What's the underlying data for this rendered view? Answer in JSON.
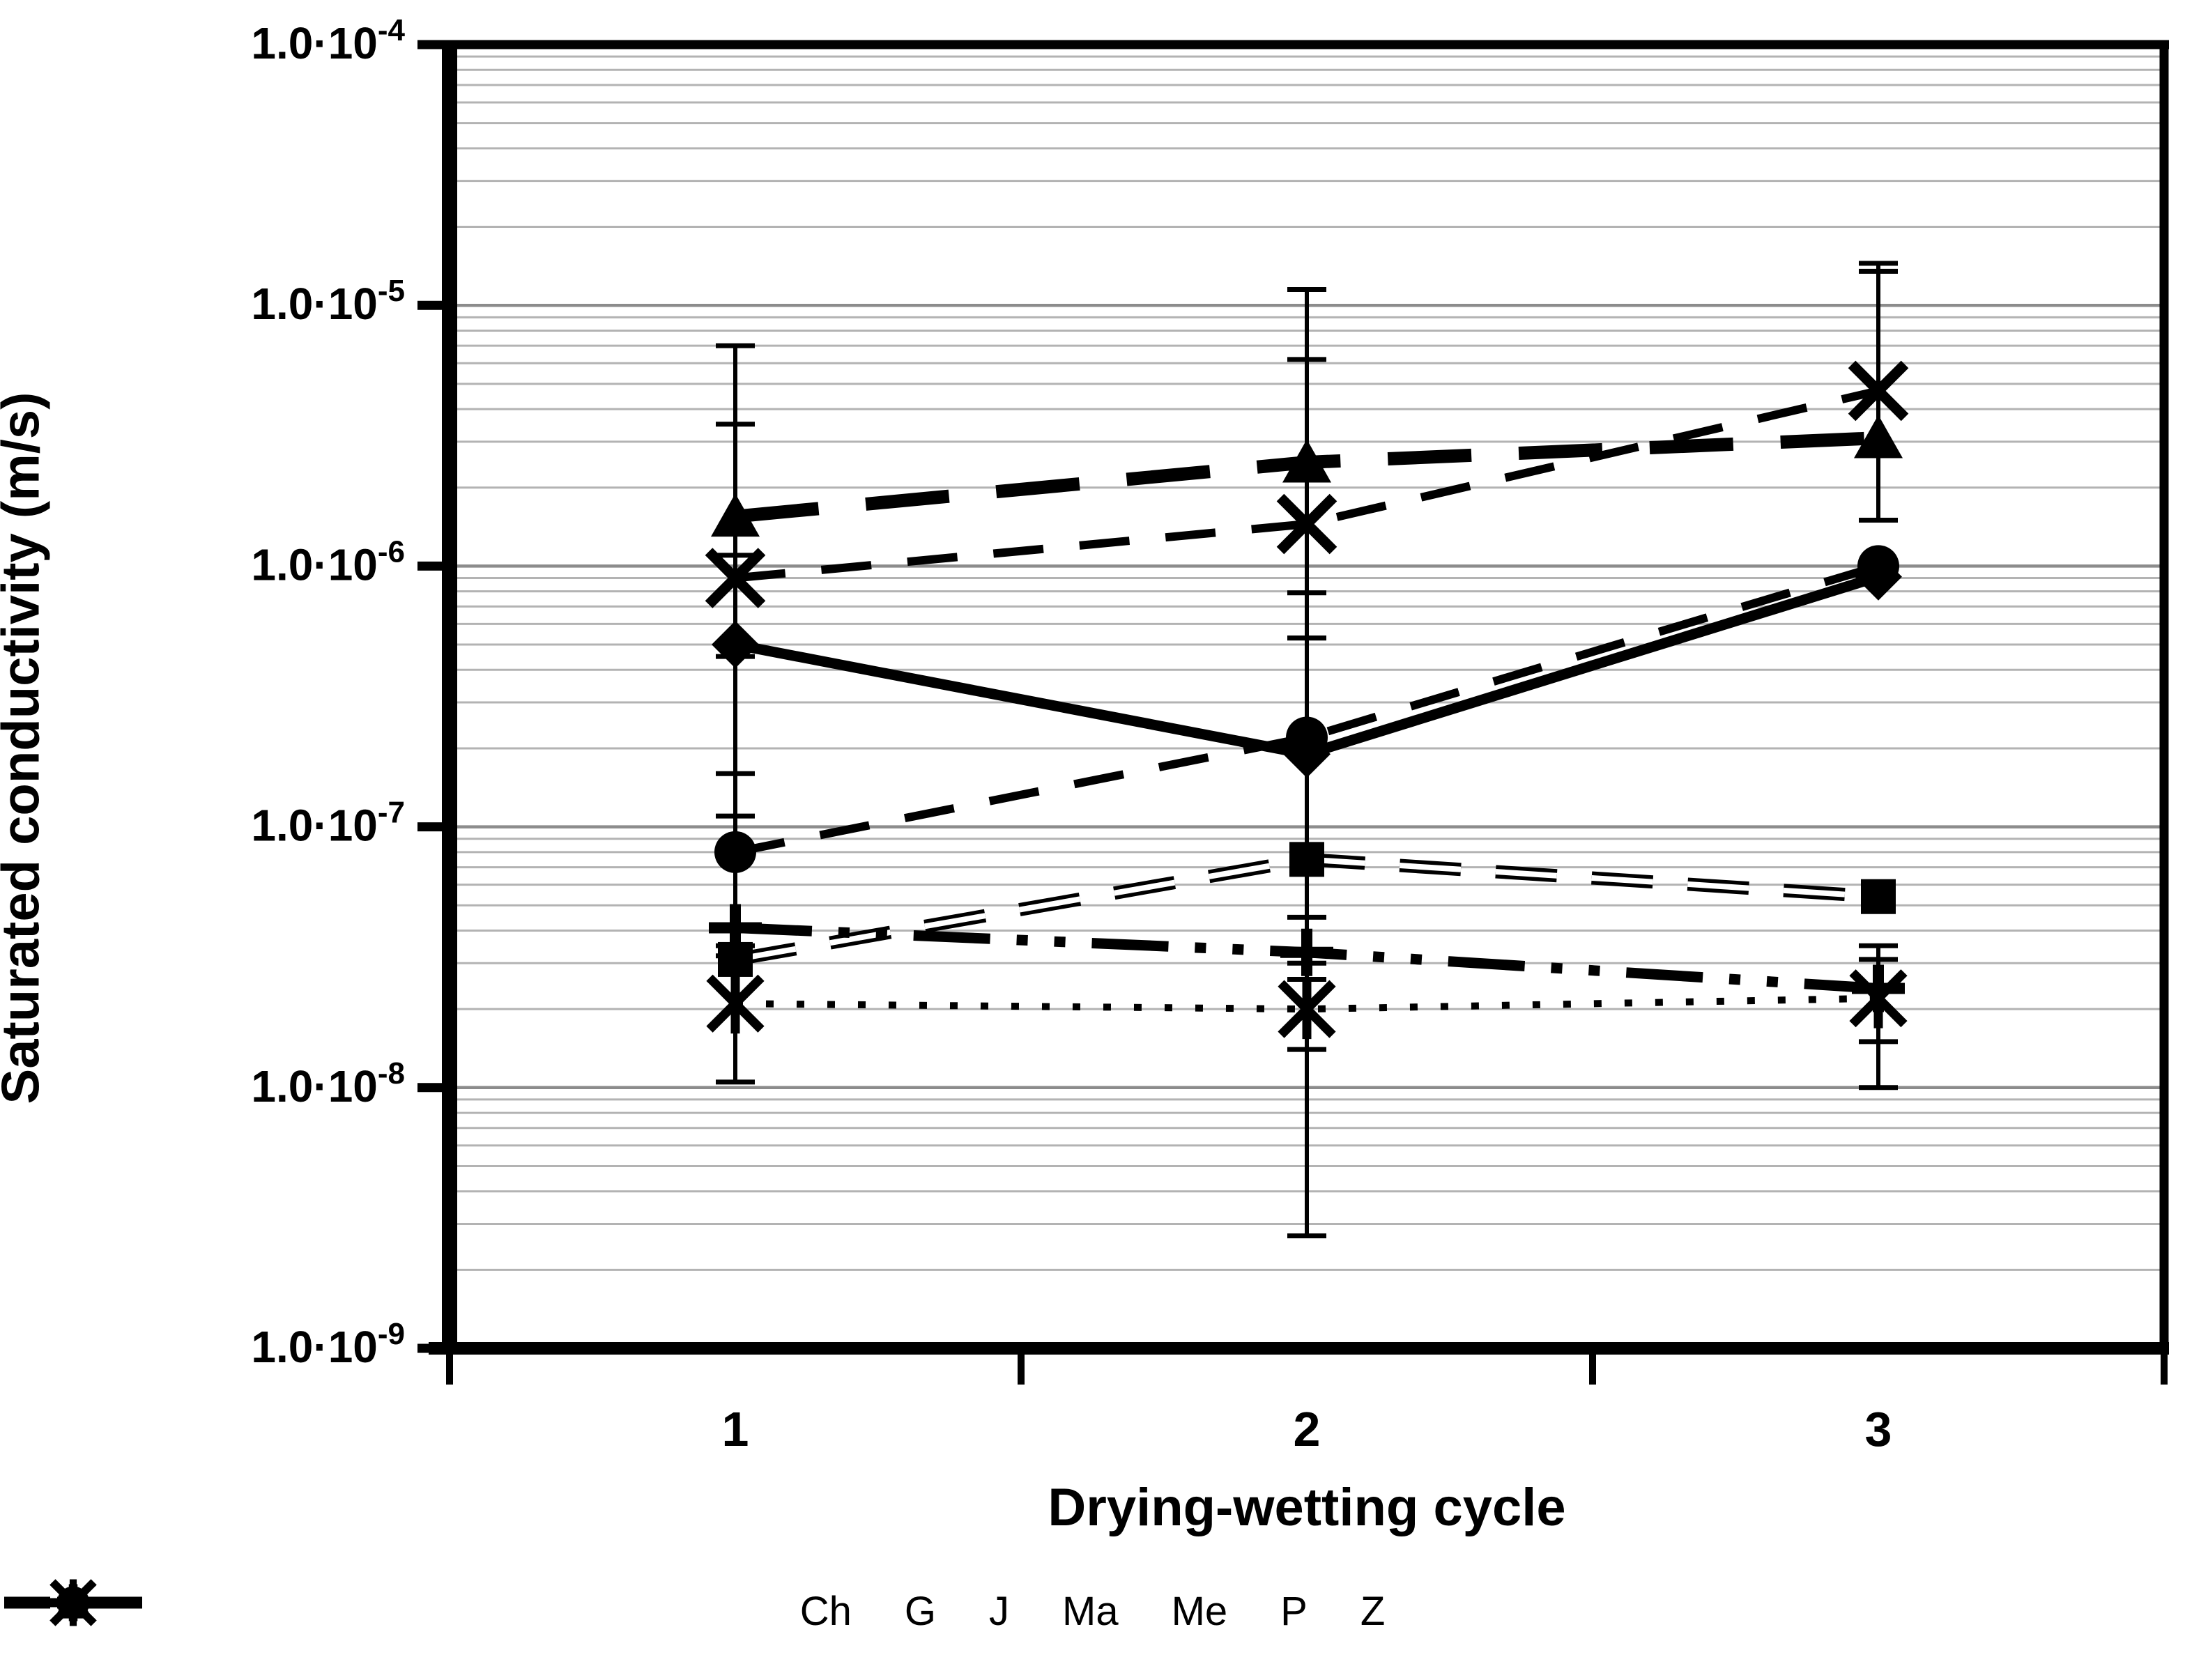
{
  "chart_data": {
    "type": "line",
    "title": "",
    "xlabel": "Drying-wetting cycle",
    "ylabel": "Saturated conductivity (m/s)",
    "x_categories": [
      "1",
      "2",
      "3"
    ],
    "y_scale": "log",
    "ylim": [
      1e-09,
      0.0001
    ],
    "y_tick_mantissa": "1.0·10",
    "y_tick_exponents": [
      "-4",
      "-5",
      "-6",
      "-7",
      "-8",
      "-9"
    ],
    "grid": "horizontal log minor+major",
    "legend_position": "bottom",
    "series": [
      {
        "name": "Ch",
        "marker": "square",
        "line": "outlined-dash",
        "values": [
          3.1e-08,
          7.5e-08,
          5.4e-08
        ],
        "err_lo": [
          null,
          null,
          null
        ],
        "err_hi": [
          null,
          null,
          null
        ]
      },
      {
        "name": "G",
        "marker": "star6",
        "line": "dotted",
        "values": [
          2.1e-08,
          2e-08,
          2.2e-08
        ],
        "err_lo": [
          1.05e-08,
          2.7e-09,
          1e-08
        ],
        "err_hi": [
          3.2e-08,
          3e-08,
          3.1e-08
        ]
      },
      {
        "name": "J",
        "marker": "x",
        "line": "dash",
        "values": [
          9e-07,
          1.45e-06,
          4.7e-06
        ],
        "err_lo": [
          4.5e-07,
          5.3e-07,
          1.5e-06
        ],
        "err_hi": [
          3.5e-06,
          6.2e-06,
          1.45e-05
        ]
      },
      {
        "name": "Ma",
        "marker": "plus",
        "line": "dash-dot-dot",
        "values": [
          4.1e-08,
          3.3e-08,
          2.4e-08
        ],
        "err_lo": [
          null,
          1.4e-08,
          1.5e-08
        ],
        "err_hi": [
          null,
          4.5e-08,
          3.5e-08
        ]
      },
      {
        "name": "Me",
        "marker": "triangle",
        "line": "heavy-dash",
        "values": [
          1.55e-06,
          2.5e-06,
          3.1e-06
        ],
        "err_lo": [
          1.1e-06,
          7.9e-07,
          1.5e-06
        ],
        "err_hi": [
          7e-06,
          1.15e-05,
          1.35e-05
        ]
      },
      {
        "name": "P",
        "marker": "circle",
        "line": "dash",
        "values": [
          8e-08,
          2.2e-07,
          1e-06
        ],
        "err_lo": [
          3.5e-08,
          2.6e-08,
          null
        ],
        "err_hi": [
          1.6e-07,
          5.3e-07,
          null
        ]
      },
      {
        "name": "Z",
        "marker": "diamond",
        "line": "solid",
        "values": [
          5e-07,
          1.9e-07,
          9.1e-07
        ],
        "err_lo": [
          1.1e-07,
          null,
          null
        ],
        "err_hi": [
          null,
          null,
          null
        ]
      }
    ],
    "colors": {
      "foreground": "#000000",
      "background": "#ffffff",
      "grid_minor": "#b3b3b3",
      "grid_major": "#8c8c8c"
    }
  }
}
